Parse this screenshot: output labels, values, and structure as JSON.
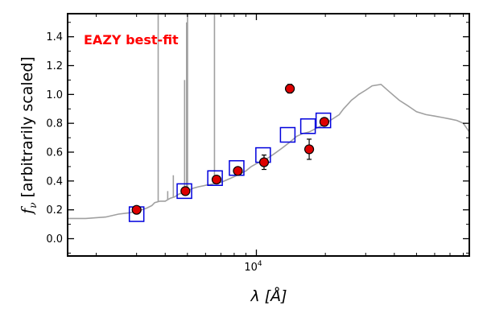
{
  "chart_data": {
    "type": "scatter",
    "title": "",
    "annotation": "EAZY best-fit",
    "annotation_color": "#ff0000",
    "ylabel_symbol": "f",
    "ylabel_subscript": "ν",
    "ylabel_text": " [arbitrarily scaled]",
    "xlabel": "λ [Å]",
    "x_scale": "log",
    "xlim": [
      1500,
      85000
    ],
    "ylim": [
      -0.12,
      1.56
    ],
    "yticks": [
      "0.0",
      "0.2",
      "0.4",
      "0.6",
      "0.8",
      "1.0",
      "1.2",
      "1.4"
    ],
    "ytick_values": [
      0.0,
      0.2,
      0.4,
      0.6,
      0.8,
      1.0,
      1.2,
      1.4
    ],
    "xtick_label": "10",
    "xtick_label_exp": "4",
    "xtick_major_value": 10000,
    "grid": false,
    "colors": {
      "template": "#a0a0a0",
      "model_boxes": "#0000dd",
      "observed_fill": "#dd0000",
      "observed_edge": "#000000"
    },
    "series": [
      {
        "name": "",
        "kind": "template",
        "x": [
          1500,
          1800,
          2200,
          2500,
          2800,
          3000,
          3300,
          3500,
          3600,
          3800,
          4000,
          4200,
          4400,
          4600,
          4800,
          5000,
          5300,
          5600,
          6000,
          6500,
          7000,
          7500,
          8000,
          8500,
          9000,
          9500,
          10000,
          11000,
          12000,
          13000,
          14000,
          15000,
          16000,
          17000,
          18000,
          19000,
          20000,
          21000,
          22000,
          23000,
          24000,
          25000,
          26000,
          27000,
          28000,
          30000,
          32000,
          35000,
          38000,
          42000,
          46000,
          50000,
          55000,
          60000,
          65000,
          70000,
          75000,
          80000,
          85000
        ],
        "y": [
          0.14,
          0.14,
          0.15,
          0.17,
          0.18,
          0.19,
          0.21,
          0.23,
          0.25,
          0.26,
          0.26,
          0.28,
          0.29,
          0.31,
          0.32,
          0.33,
          0.35,
          0.36,
          0.37,
          0.38,
          0.39,
          0.41,
          0.43,
          0.45,
          0.47,
          0.5,
          0.52,
          0.55,
          0.59,
          0.63,
          0.67,
          0.71,
          0.73,
          0.74,
          0.76,
          0.78,
          0.79,
          0.82,
          0.84,
          0.86,
          0.9,
          0.93,
          0.96,
          0.98,
          1.0,
          1.03,
          1.06,
          1.07,
          1.02,
          0.96,
          0.92,
          0.88,
          0.86,
          0.85,
          0.84,
          0.83,
          0.82,
          0.8,
          0.74
        ]
      },
      {
        "name": "",
        "kind": "emission_lines",
        "x": [
          3727,
          4102,
          4340,
          4861,
          4959,
          5007,
          6563
        ],
        "peak": [
          1.56,
          0.33,
          0.44,
          1.1,
          1.5,
          1.56,
          1.56
        ]
      },
      {
        "name": "",
        "kind": "model_photometry",
        "x": [
          3000,
          4850,
          6600,
          8200,
          10700,
          13700,
          16800,
          19600
        ],
        "y": [
          0.17,
          0.33,
          0.42,
          0.49,
          0.58,
          0.72,
          0.78,
          0.82
        ]
      },
      {
        "name": "",
        "kind": "observed_photometry",
        "x": [
          3000,
          4900,
          6700,
          8300,
          10800,
          14000,
          17000,
          19800
        ],
        "y": [
          0.2,
          0.33,
          0.41,
          0.47,
          0.53,
          1.04,
          0.62,
          0.81
        ],
        "err": [
          0.02,
          0.01,
          0.01,
          0.02,
          0.05,
          0.03,
          0.07,
          0.02
        ]
      }
    ]
  }
}
